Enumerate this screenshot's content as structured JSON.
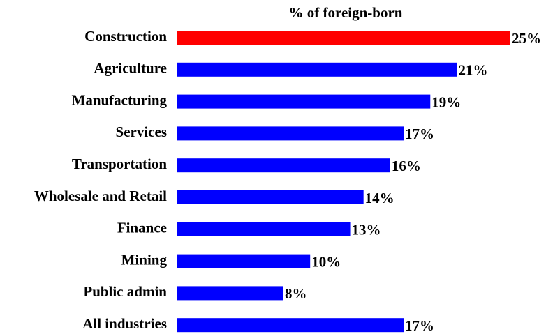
{
  "chart_data": {
    "type": "barh",
    "title": "% of foreign-born",
    "categories": [
      "Construction",
      "Agriculture",
      "Manufacturing",
      "Services",
      "Transportation",
      "Wholesale and Retail",
      "Finance",
      "Mining",
      "Public admin",
      "All industries"
    ],
    "values": [
      25,
      21,
      19,
      17,
      16,
      14,
      13,
      10,
      8,
      17
    ],
    "value_labels": [
      "25%",
      "21%",
      "19%",
      "17%",
      "16%",
      "14%",
      "13%",
      "10%",
      "8%",
      "17%"
    ],
    "colors": [
      "#ff0000",
      "#0000ff",
      "#0000ff",
      "#0000ff",
      "#0000ff",
      "#0000ff",
      "#0000ff",
      "#0000ff",
      "#0000ff",
      "#0000ff"
    ]
  }
}
